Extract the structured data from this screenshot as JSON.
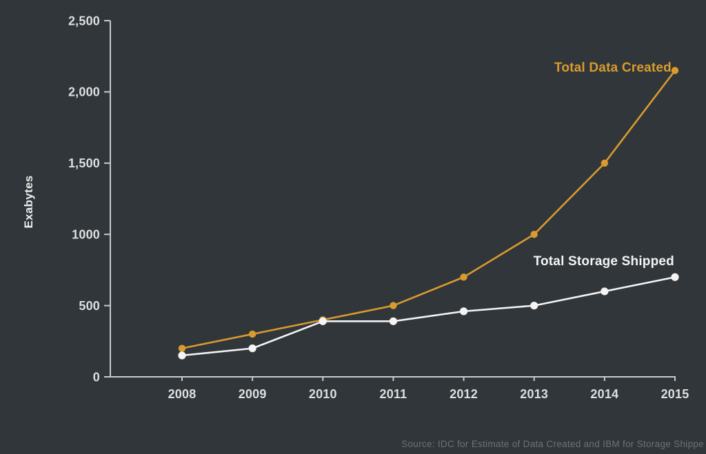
{
  "chart_data": {
    "type": "line",
    "x": [
      "2008",
      "2009",
      "2010",
      "2011",
      "2012",
      "2013",
      "2014",
      "2015"
    ],
    "series": [
      {
        "name": "Total Data Created",
        "color": "#d89b2e",
        "values": [
          200,
          300,
          400,
          500,
          700,
          1000,
          1500,
          2150
        ]
      },
      {
        "name": "Total Storage Shipped",
        "color": "#f4f4f4",
        "values": [
          150,
          200,
          390,
          390,
          460,
          500,
          600,
          700
        ]
      }
    ],
    "title": "",
    "xlabel": "",
    "ylabel": "Exabytes",
    "ylim": [
      0,
      2500
    ],
    "y_ticks": {
      "values": [
        0,
        500,
        1000,
        1500,
        2000,
        2500
      ],
      "labels": [
        "0",
        "500",
        "1000",
        "1,500",
        "2,000",
        "2,500"
      ]
    },
    "grid": false,
    "legend_position": "inline-labels-near-lines",
    "source": "Source: IDC for Estimate of Data Created and IBM for Storage Shippe"
  },
  "colors": {
    "background": "#31363a",
    "axis": "#c9cccd",
    "tick_label": "#dddfe0",
    "axis_title": "#eceeee",
    "source_text": "#6d7276"
  }
}
